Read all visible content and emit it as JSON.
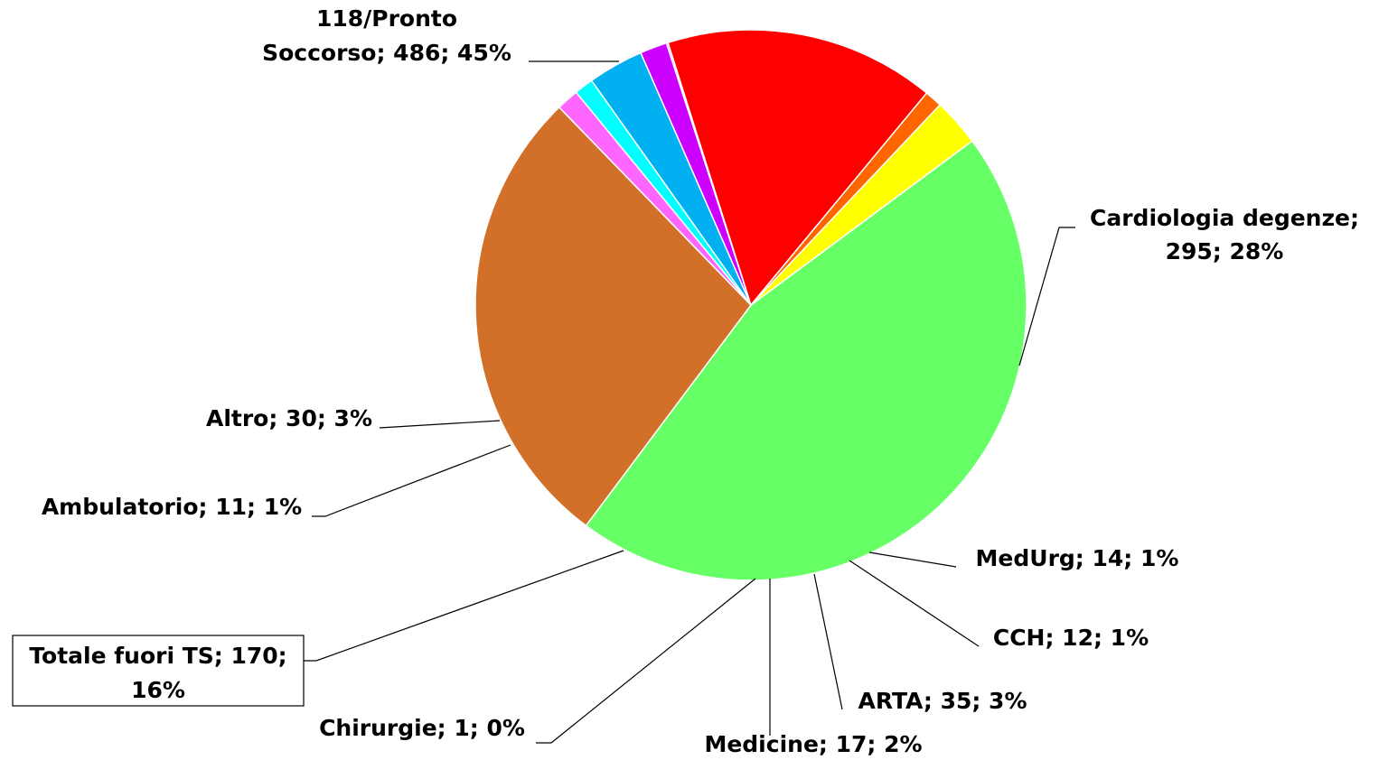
{
  "chart_data": {
    "type": "pie",
    "categories": [
      "118/Pronto Soccorso",
      "Cardiologia degenze",
      "MedUrg",
      "CCH",
      "ARTA",
      "Medicine",
      "Chirurgie",
      "Totale fuori TS",
      "Ambulatorio",
      "Altro"
    ],
    "values": [
      486,
      295,
      14,
      12,
      35,
      17,
      1,
      170,
      11,
      30
    ],
    "value_labels": [
      [
        "118/Pronto",
        "Soccorso; 486; 45%"
      ],
      [
        "Cardiologia degenze;",
        "295; 28%"
      ],
      [
        "MedUrg; 14; 1%"
      ],
      [
        "CCH; 12; 1%"
      ],
      [
        "ARTA; 35; 3%"
      ],
      [
        "Medicine; 17; 2%"
      ],
      [
        "Chirurgie; 1; 0%"
      ],
      [
        "Totale fuori TS; 170;",
        "16%"
      ],
      [
        "Ambulatorio; 11; 1%"
      ],
      [
        "Altro; 30; 3%"
      ]
    ],
    "colors": [
      "#66ff66",
      "#d2702a",
      "#ff66ff",
      "#00ffff",
      "#00b0f0",
      "#cc00ff",
      "#9900cc",
      "#ff0000",
      "#ff6600",
      "#ffff00"
    ]
  }
}
